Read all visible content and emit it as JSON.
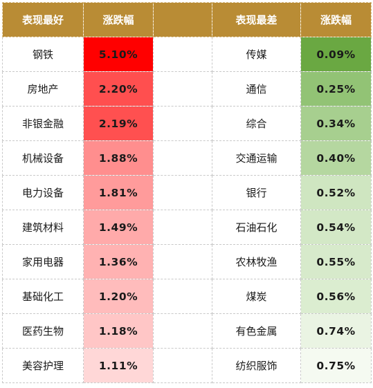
{
  "header": {
    "best_label": "表现最好",
    "best_change_label": "涨跌幅",
    "worst_label": "表现最差",
    "worst_change_label": "涨跌幅"
  },
  "best": [
    {
      "name": "钢铁",
      "change": "5.10%",
      "bg": "#ff0000"
    },
    {
      "name": "房地产",
      "change": "2.20%",
      "bg": "#ff4f4f"
    },
    {
      "name": "非银金融",
      "change": "2.19%",
      "bg": "#ff5050"
    },
    {
      "name": "机械设备",
      "change": "1.88%",
      "bg": "#ff8e8e"
    },
    {
      "name": "电力设备",
      "change": "1.81%",
      "bg": "#ff9b9b"
    },
    {
      "name": "建筑材料",
      "change": "1.49%",
      "bg": "#ffaaaa"
    },
    {
      "name": "家用电器",
      "change": "1.36%",
      "bg": "#ffb2b2"
    },
    {
      "name": "基础化工",
      "change": "1.20%",
      "bg": "#ffbcbc"
    },
    {
      "name": "医药生物",
      "change": "1.18%",
      "bg": "#ffc6c6"
    },
    {
      "name": "美容护理",
      "change": "1.11%",
      "bg": "#ffd7d7"
    }
  ],
  "worst": [
    {
      "name": "传媒",
      "change": "0.09%",
      "bg": "#6aa842"
    },
    {
      "name": "通信",
      "change": "0.25%",
      "bg": "#92c375"
    },
    {
      "name": "综合",
      "change": "0.34%",
      "bg": "#a7cf8f"
    },
    {
      "name": "交通运输",
      "change": "0.40%",
      "bg": "#b5d7a0"
    },
    {
      "name": "银行",
      "change": "0.52%",
      "bg": "#cfe6c1"
    },
    {
      "name": "石油石化",
      "change": "0.54%",
      "bg": "#d3e8c6"
    },
    {
      "name": "农林牧渔",
      "change": "0.55%",
      "bg": "#d7eacb"
    },
    {
      "name": "煤炭",
      "change": "0.56%",
      "bg": "#dbedd0"
    },
    {
      "name": "有色金属",
      "change": "0.74%",
      "bg": "#eaf4e3"
    },
    {
      "name": "纺织服饰",
      "change": "0.75%",
      "bg": "#f5faf1"
    }
  ]
}
